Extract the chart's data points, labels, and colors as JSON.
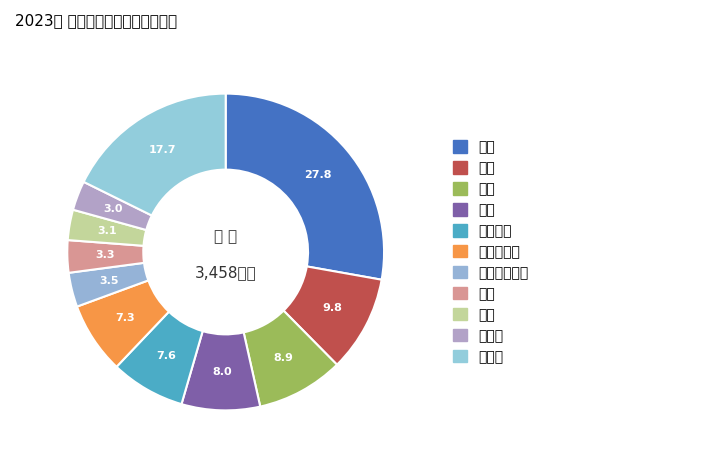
{
  "title": "2023年 輸出相手国のシェア（％）",
  "center_label_line1": "総 額",
  "center_label_line2": "3,458億円",
  "labels": [
    "中国",
    "米国",
    "韓国",
    "タイ",
    "ベトナム",
    "フィリピン",
    "インドネシア",
    "香港",
    "台湾",
    "インド",
    "その他"
  ],
  "values": [
    27.8,
    9.8,
    8.9,
    8.0,
    7.6,
    7.3,
    3.5,
    3.3,
    3.1,
    3.0,
    17.7
  ],
  "colors": [
    "#4472C4",
    "#C0504D",
    "#9BBB59",
    "#7F5FA8",
    "#4BACC6",
    "#F79646",
    "#95B3D7",
    "#D99694",
    "#C3D69B",
    "#B2A2C7",
    "#92CDDC"
  ],
  "legend_labels": [
    "中国",
    "米国",
    "韓国",
    "タイ",
    "ベトナム",
    "フィリピン",
    "インドネシア",
    "香港",
    "台湾",
    "インド",
    "その他"
  ]
}
